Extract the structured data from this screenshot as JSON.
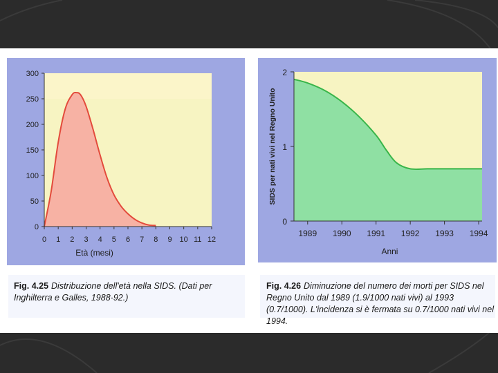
{
  "chart_data": [
    {
      "type": "area",
      "xlabel": "Età (mesi)",
      "ylabel": "",
      "xlim": [
        0,
        12
      ],
      "ylim": [
        0,
        300
      ],
      "xticks": [
        "0",
        "1",
        "2",
        "3",
        "4",
        "5",
        "6",
        "7",
        "8",
        "9",
        "10",
        "11",
        "12"
      ],
      "yticks": [
        "0",
        "50",
        "100",
        "150",
        "200",
        "250",
        "300"
      ],
      "x": [
        0,
        0.5,
        1,
        1.5,
        2,
        2.3,
        2.6,
        3,
        3.5,
        4,
        4.5,
        5,
        5.5,
        6,
        6.5,
        7,
        7.5,
        8
      ],
      "series": [
        {
          "values": [
            0,
            70,
            165,
            230,
            258,
            262,
            258,
            235,
            190,
            140,
            95,
            62,
            40,
            25,
            14,
            7,
            3,
            2
          ]
        }
      ],
      "colors": {
        "fill": "#f7b2a4",
        "line": "#e34b3c",
        "band": "#fbf5c9",
        "bg": "#f7f4c2"
      }
    },
    {
      "type": "area",
      "xlabel": "Anni",
      "ylabel": "SIDS per nati vivi nel Regno Unito",
      "xlim": [
        1988.6,
        1994.1
      ],
      "ylim": [
        0,
        2
      ],
      "xticks": [
        "1989",
        "1990",
        "1991",
        "1992",
        "1993",
        "1994"
      ],
      "yticks": [
        "0",
        "1",
        "2"
      ],
      "x": [
        1988.6,
        1989,
        1989.5,
        1990,
        1990.5,
        1991,
        1991.3,
        1991.6,
        1992,
        1992.5,
        1993,
        1993.5,
        1994.1
      ],
      "series": [
        {
          "values": [
            1.9,
            1.85,
            1.75,
            1.6,
            1.4,
            1.15,
            0.95,
            0.78,
            0.7,
            0.7,
            0.7,
            0.7,
            0.7
          ]
        }
      ],
      "colors": {
        "fill": "#8fe0a3",
        "line": "#39b54a",
        "bg": "#f7f4c2"
      }
    }
  ],
  "captions": {
    "left": {
      "ref": "Fig. 4.25",
      "text": "Distribuzione dell'età nella SIDS. (Dati per Inghilterra e Galles, 1988-92.)"
    },
    "right": {
      "ref": "Fig. 4.26",
      "text": "Diminuzione del numero dei morti per SIDS nel Regno Unito dal 1989 (1.9/1000 nati vivi) al 1993 (0.7/1000). L'incidenza si è fermata su 0.7/1000 nati vivi nel 1994."
    }
  }
}
